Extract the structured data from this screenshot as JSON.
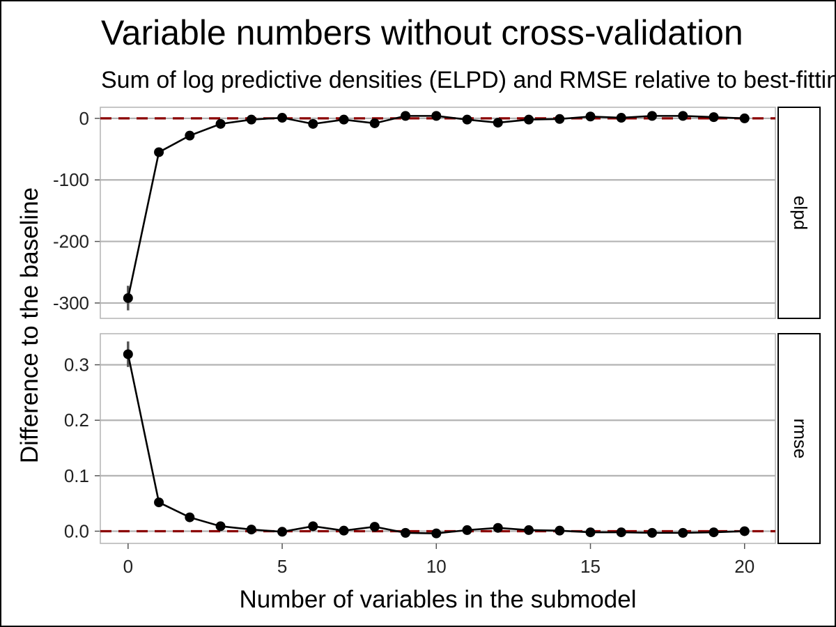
{
  "chart_data": {
    "type": "line",
    "title": "Variable numbers without cross-validation",
    "subtitle": "Sum of log predictive densities (ELPD) and RMSE relative to best-fitting model",
    "xlabel": "Number of variables in the submodel",
    "ylabel": "Difference to the baseline",
    "x_ticks": [
      0,
      5,
      10,
      15,
      20
    ],
    "xlim": [
      -0.9,
      21
    ],
    "grid": "horizontal major",
    "reference_line": {
      "value": 0,
      "color": "#8B0000",
      "style": "dashed"
    },
    "x": [
      0,
      1,
      2,
      3,
      4,
      5,
      6,
      7,
      8,
      9,
      10,
      11,
      12,
      13,
      14,
      15,
      16,
      17,
      18,
      19,
      20
    ],
    "panels": [
      {
        "strip": "elpd",
        "ylim": [
          -325,
          18
        ],
        "y_ticks": [
          0,
          -100,
          -200,
          -300
        ],
        "y_tick_labels": [
          "0",
          "-100",
          "-200",
          "-300"
        ],
        "values": [
          -292,
          -55,
          -28,
          -9,
          -2,
          1,
          -9,
          -2,
          -8,
          4,
          4,
          -2,
          -7,
          -2,
          -1,
          3,
          1,
          4,
          4,
          2,
          0
        ],
        "error_low": [
          -312,
          -60,
          -32,
          -12,
          -5,
          -1,
          -12,
          -5,
          -11,
          2,
          2,
          -5,
          -10,
          -4,
          -3,
          1,
          -1,
          2,
          2,
          0,
          -1
        ],
        "error_high": [
          -272,
          -50,
          -24,
          -6,
          1,
          3,
          -6,
          1,
          -5,
          6,
          6,
          1,
          -4,
          0,
          1,
          5,
          3,
          6,
          6,
          4,
          1
        ]
      },
      {
        "strip": "rmse",
        "ylim": [
          -0.022,
          0.356
        ],
        "y_ticks": [
          0.3,
          0.2,
          0.1,
          0.0
        ],
        "y_tick_labels": [
          "0.3",
          "0.2",
          "0.1",
          "0.0"
        ],
        "values": [
          0.319,
          0.052,
          0.025,
          0.009,
          0.003,
          -0.001,
          0.009,
          0.001,
          0.008,
          -0.003,
          -0.004,
          0.002,
          0.006,
          0.002,
          0.001,
          -0.002,
          -0.002,
          -0.003,
          -0.003,
          -0.002,
          0.0
        ],
        "error_low": [
          0.296,
          0.047,
          0.021,
          0.006,
          0.001,
          -0.003,
          0.006,
          -0.001,
          0.005,
          -0.005,
          -0.006,
          0.0,
          0.003,
          0.0,
          -0.001,
          -0.004,
          -0.004,
          -0.005,
          -0.005,
          -0.004,
          -0.002
        ],
        "error_high": [
          0.342,
          0.057,
          0.029,
          0.012,
          0.005,
          0.001,
          0.012,
          0.003,
          0.011,
          -0.001,
          -0.002,
          0.004,
          0.009,
          0.004,
          0.003,
          0.0,
          0.0,
          -0.001,
          -0.001,
          0.0,
          0.002
        ]
      }
    ],
    "colors": {
      "line": "#000000",
      "points": "#000000",
      "error_bars": "#555555",
      "grid": "#b3b3b3",
      "reference": "#8B0000",
      "strip_fill": "#ffffff"
    }
  }
}
